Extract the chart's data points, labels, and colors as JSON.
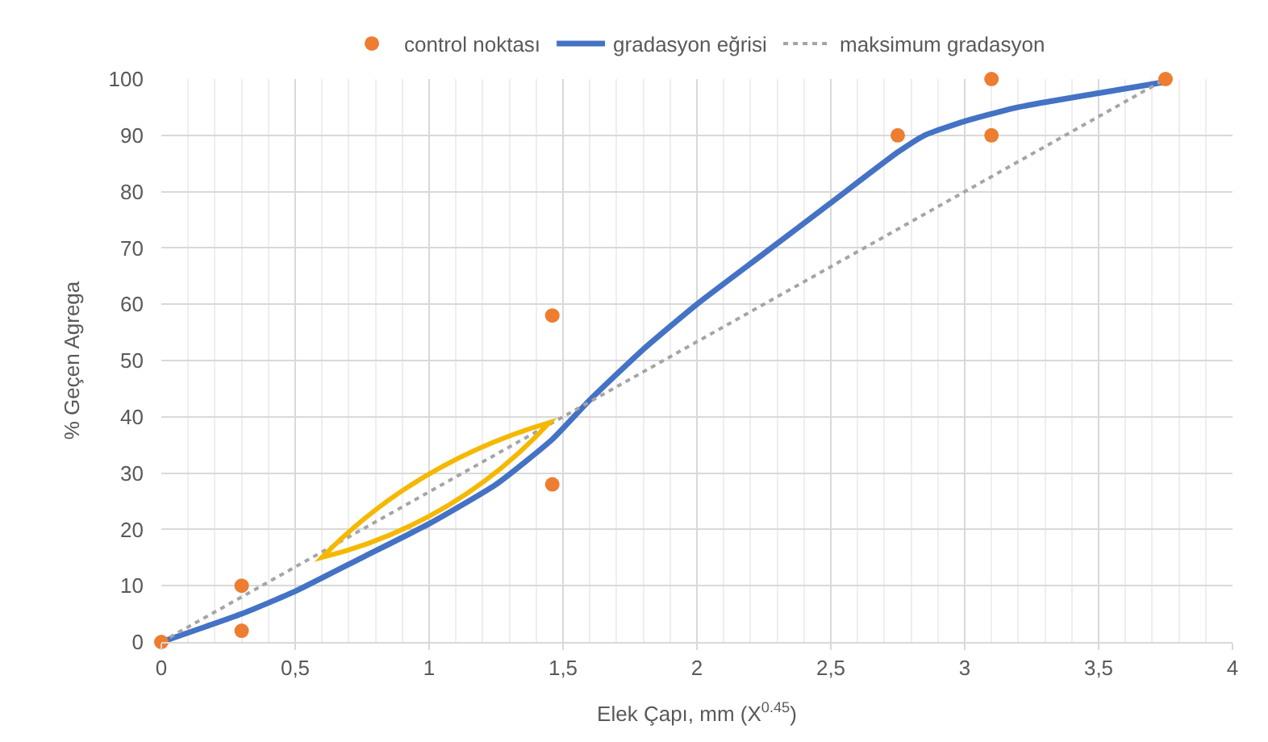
{
  "chart_data": {
    "type": "line",
    "xlabel": "Elek Çapı, mm (X$^{0.45}$)",
    "ylabel": "% Geçen Agrega",
    "legend": "top",
    "grid": true,
    "xlim": [
      0,
      4
    ],
    "xticks": [
      0,
      {
        "value": 0.5,
        "label": "0,5"
      },
      1,
      {
        "value": 1.5,
        "label": "1,5"
      },
      2,
      {
        "value": 2.5,
        "label": "2,5"
      },
      3,
      {
        "value": 3.5,
        "label": "3,5"
      },
      4
    ],
    "ylim": [
      0,
      100
    ],
    "yticks": [
      0,
      10,
      20,
      30,
      40,
      50,
      60,
      70,
      80,
      90,
      100
    ],
    "series": [
      {
        "name": "control noktası",
        "type": "scatter",
        "marker": "circle",
        "color": "#ed7d31",
        "x": [
          0,
          0.3,
          0.3,
          1.46,
          1.46,
          2.75,
          3.1,
          3.1,
          3.75
        ],
        "values": [
          0,
          10,
          2,
          58,
          28,
          90,
          100,
          90,
          100
        ]
      },
      {
        "name": "gradasyon eğrisi",
        "marker": "none",
        "line_style": "solid",
        "color": "#4472c4",
        "x": [
          0,
          0.3,
          0.5,
          0.75,
          1,
          1.25,
          1.46,
          1.6,
          1.8,
          2,
          2.25,
          2.5,
          2.75,
          2.85,
          3,
          3.2,
          3.5,
          3.75
        ],
        "values": [
          0,
          5,
          9,
          15,
          21,
          28,
          36,
          43,
          52,
          60,
          69,
          78,
          87,
          90,
          92.5,
          95,
          97.5,
          99.5
        ]
      },
      {
        "name": "maksimum gradasyon",
        "marker": "none",
        "line_style": "dotted",
        "color": "#a5a5a5",
        "x": [
          0,
          3.75
        ],
        "values": [
          0,
          100
        ]
      }
    ]
  }
}
